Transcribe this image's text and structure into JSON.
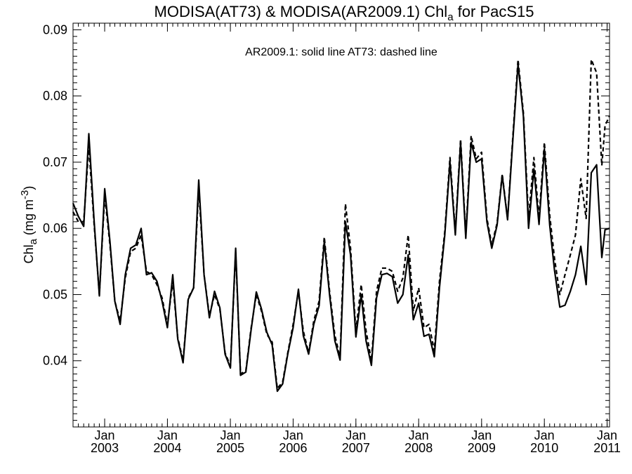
{
  "chart_data": {
    "type": "line",
    "title": {
      "prefix": "MODISA(AT73) & MODISA(AR2009.1)  Chl",
      "sub": "a",
      "suffix": " for PacS15"
    },
    "ylabel": {
      "main": "Chl",
      "sub": "a",
      "unit_open": " (mg m",
      "unit_sup": "-3",
      "unit_close": ")"
    },
    "annotation": "AR2009.1: solid line   AT73: dashed line",
    "ylim": [
      0.03,
      0.091
    ],
    "xlim": [
      "2002-07-01",
      "2011-01-15"
    ],
    "y_ticks": [
      "0.04",
      "0.05",
      "0.06",
      "0.07",
      "0.08",
      "0.09"
    ],
    "x_ticks": [
      {
        "date": "2003-01-01",
        "month": "Jan",
        "year": "2003"
      },
      {
        "date": "2004-01-01",
        "month": "Jan",
        "year": "2004"
      },
      {
        "date": "2005-01-01",
        "month": "Jan",
        "year": "2005"
      },
      {
        "date": "2006-01-01",
        "month": "Jan",
        "year": "2006"
      },
      {
        "date": "2007-01-01",
        "month": "Jan",
        "year": "2007"
      },
      {
        "date": "2008-01-01",
        "month": "Jan",
        "year": "2008"
      },
      {
        "date": "2009-01-01",
        "month": "Jan",
        "year": "2009"
      },
      {
        "date": "2010-01-01",
        "month": "Jan",
        "year": "2010"
      },
      {
        "date": "2011-01-01",
        "month": "Jan",
        "year": "2011"
      }
    ],
    "grid": false,
    "series": [
      {
        "name": "AR2009.1",
        "style": "solid",
        "color": "#000000",
        "points": [
          [
            "2002-07-01",
            0.0638
          ],
          [
            "2002-08-01",
            0.0618
          ],
          [
            "2002-09-01",
            0.0603
          ],
          [
            "2002-10-01",
            0.0743
          ],
          [
            "2002-11-01",
            0.061
          ],
          [
            "2002-12-01",
            0.0498
          ],
          [
            "2003-01-01",
            0.066
          ],
          [
            "2003-02-01",
            0.058
          ],
          [
            "2003-03-01",
            0.049
          ],
          [
            "2003-04-01",
            0.0455
          ],
          [
            "2003-05-01",
            0.053
          ],
          [
            "2003-06-01",
            0.057
          ],
          [
            "2003-07-01",
            0.0575
          ],
          [
            "2003-08-01",
            0.06
          ],
          [
            "2003-09-01",
            0.053
          ],
          [
            "2003-10-01",
            0.0533
          ],
          [
            "2003-11-01",
            0.052
          ],
          [
            "2003-12-01",
            0.049
          ],
          [
            "2004-01-01",
            0.045
          ],
          [
            "2004-02-01",
            0.053
          ],
          [
            "2004-03-01",
            0.0433
          ],
          [
            "2004-04-01",
            0.0397
          ],
          [
            "2004-05-01",
            0.0493
          ],
          [
            "2004-06-01",
            0.051
          ],
          [
            "2004-07-01",
            0.0673
          ],
          [
            "2004-08-01",
            0.053
          ],
          [
            "2004-09-01",
            0.0465
          ],
          [
            "2004-10-01",
            0.0505
          ],
          [
            "2004-11-01",
            0.048
          ],
          [
            "2004-12-01",
            0.041
          ],
          [
            "2005-01-01",
            0.0389
          ],
          [
            "2005-02-01",
            0.057
          ],
          [
            "2005-03-01",
            0.0378
          ],
          [
            "2005-04-01",
            0.0383
          ],
          [
            "2005-05-01",
            0.0445
          ],
          [
            "2005-06-01",
            0.0504
          ],
          [
            "2005-07-01",
            0.0478
          ],
          [
            "2005-08-01",
            0.0443
          ],
          [
            "2005-09-01",
            0.0424
          ],
          [
            "2005-10-01",
            0.0354
          ],
          [
            "2005-11-01",
            0.0365
          ],
          [
            "2005-12-01",
            0.041
          ],
          [
            "2006-01-01",
            0.045
          ],
          [
            "2006-02-01",
            0.0508
          ],
          [
            "2006-03-01",
            0.0438
          ],
          [
            "2006-04-01",
            0.041
          ],
          [
            "2006-05-01",
            0.0455
          ],
          [
            "2006-06-01",
            0.0483
          ],
          [
            "2006-07-01",
            0.058
          ],
          [
            "2006-08-01",
            0.05
          ],
          [
            "2006-09-01",
            0.043
          ],
          [
            "2006-10-01",
            0.0401
          ],
          [
            "2006-11-01",
            0.061
          ],
          [
            "2006-12-01",
            0.056
          ],
          [
            "2007-01-01",
            0.0436
          ],
          [
            "2007-02-01",
            0.05
          ],
          [
            "2007-03-01",
            0.043
          ],
          [
            "2007-04-01",
            0.0393
          ],
          [
            "2007-05-01",
            0.0495
          ],
          [
            "2007-06-01",
            0.053
          ],
          [
            "2007-07-01",
            0.0532
          ],
          [
            "2007-08-01",
            0.0527
          ],
          [
            "2007-09-01",
            0.0487
          ],
          [
            "2007-10-01",
            0.05
          ],
          [
            "2007-11-01",
            0.056
          ],
          [
            "2007-12-01",
            0.0462
          ],
          [
            "2008-01-01",
            0.0487
          ],
          [
            "2008-02-01",
            0.0437
          ],
          [
            "2008-03-01",
            0.044
          ],
          [
            "2008-04-01",
            0.0406
          ],
          [
            "2008-05-01",
            0.051
          ],
          [
            "2008-06-01",
            0.059
          ],
          [
            "2008-07-01",
            0.07
          ],
          [
            "2008-08-01",
            0.059
          ],
          [
            "2008-09-01",
            0.073
          ],
          [
            "2008-10-01",
            0.0585
          ],
          [
            "2008-11-01",
            0.073
          ],
          [
            "2008-12-01",
            0.07
          ],
          [
            "2009-01-01",
            0.0705
          ],
          [
            "2009-02-01",
            0.061
          ],
          [
            "2009-03-01",
            0.057
          ],
          [
            "2009-04-01",
            0.0605
          ],
          [
            "2009-05-01",
            0.068
          ],
          [
            "2009-06-01",
            0.0613
          ],
          [
            "2009-07-01",
            0.073
          ],
          [
            "2009-08-01",
            0.0848
          ],
          [
            "2009-09-01",
            0.077
          ],
          [
            "2009-10-01",
            0.06
          ],
          [
            "2009-11-01",
            0.069
          ],
          [
            "2009-12-01",
            0.0606
          ],
          [
            "2010-01-01",
            0.072
          ],
          [
            "2010-02-01",
            0.0605
          ],
          [
            "2010-03-01",
            0.0537
          ],
          [
            "2010-04-01",
            0.0481
          ],
          [
            "2010-05-01",
            0.0484
          ],
          [
            "2010-06-01",
            0.0505
          ],
          [
            "2010-07-01",
            0.053
          ],
          [
            "2010-08-01",
            0.0573
          ],
          [
            "2010-09-01",
            0.0515
          ],
          [
            "2010-10-01",
            0.0684
          ],
          [
            "2010-11-01",
            0.0696
          ],
          [
            "2010-12-01",
            0.0556
          ],
          [
            "2010-12-20",
            0.0598
          ],
          [
            "2011-01-15",
            0.06
          ]
        ]
      },
      {
        "name": "AT73",
        "style": "dashed",
        "color": "#000000",
        "points": [
          [
            "2002-07-01",
            0.0625
          ],
          [
            "2002-08-01",
            0.061
          ],
          [
            "2002-09-01",
            0.061
          ],
          [
            "2002-10-01",
            0.0725
          ],
          [
            "2002-11-01",
            0.0605
          ],
          [
            "2002-12-01",
            0.05
          ],
          [
            "2003-01-01",
            0.065
          ],
          [
            "2003-02-01",
            0.0575
          ],
          [
            "2003-03-01",
            0.049
          ],
          [
            "2003-04-01",
            0.046
          ],
          [
            "2003-05-01",
            0.0525
          ],
          [
            "2003-06-01",
            0.0565
          ],
          [
            "2003-07-01",
            0.057
          ],
          [
            "2003-08-01",
            0.059
          ],
          [
            "2003-09-01",
            0.0535
          ],
          [
            "2003-10-01",
            0.053
          ],
          [
            "2003-11-01",
            0.0515
          ],
          [
            "2003-12-01",
            0.0495
          ],
          [
            "2004-01-01",
            0.0455
          ],
          [
            "2004-02-01",
            0.052
          ],
          [
            "2004-03-01",
            0.0435
          ],
          [
            "2004-04-01",
            0.04
          ],
          [
            "2004-05-01",
            0.0495
          ],
          [
            "2004-06-01",
            0.051
          ],
          [
            "2004-07-01",
            0.066
          ],
          [
            "2004-08-01",
            0.053
          ],
          [
            "2004-09-01",
            0.0468
          ],
          [
            "2004-10-01",
            0.05
          ],
          [
            "2004-11-01",
            0.0478
          ],
          [
            "2004-12-01",
            0.0412
          ],
          [
            "2005-01-01",
            0.0392
          ],
          [
            "2005-02-01",
            0.0565
          ],
          [
            "2005-03-01",
            0.038
          ],
          [
            "2005-04-01",
            0.0385
          ],
          [
            "2005-05-01",
            0.0448
          ],
          [
            "2005-06-01",
            0.05
          ],
          [
            "2005-07-01",
            0.0475
          ],
          [
            "2005-08-01",
            0.044
          ],
          [
            "2005-09-01",
            0.0428
          ],
          [
            "2005-10-01",
            0.0358
          ],
          [
            "2005-11-01",
            0.0368
          ],
          [
            "2005-12-01",
            0.0412
          ],
          [
            "2006-01-01",
            0.0455
          ],
          [
            "2006-02-01",
            0.0505
          ],
          [
            "2006-03-01",
            0.0445
          ],
          [
            "2006-04-01",
            0.0412
          ],
          [
            "2006-05-01",
            0.046
          ],
          [
            "2006-06-01",
            0.049
          ],
          [
            "2006-07-01",
            0.0587
          ],
          [
            "2006-08-01",
            0.0505
          ],
          [
            "2006-09-01",
            0.0438
          ],
          [
            "2006-10-01",
            0.0405
          ],
          [
            "2006-11-01",
            0.0637
          ],
          [
            "2006-12-01",
            0.057
          ],
          [
            "2007-01-01",
            0.0445
          ],
          [
            "2007-02-01",
            0.0515
          ],
          [
            "2007-03-01",
            0.0445
          ],
          [
            "2007-04-01",
            0.04
          ],
          [
            "2007-05-01",
            0.0505
          ],
          [
            "2007-06-01",
            0.054
          ],
          [
            "2007-07-01",
            0.054
          ],
          [
            "2007-08-01",
            0.0535
          ],
          [
            "2007-09-01",
            0.0505
          ],
          [
            "2007-10-01",
            0.0525
          ],
          [
            "2007-11-01",
            0.059
          ],
          [
            "2007-12-01",
            0.0475
          ],
          [
            "2008-01-01",
            0.051
          ],
          [
            "2008-02-01",
            0.045
          ],
          [
            "2008-03-01",
            0.0455
          ],
          [
            "2008-04-01",
            0.0415
          ],
          [
            "2008-05-01",
            0.052
          ],
          [
            "2008-06-01",
            0.0595
          ],
          [
            "2008-07-01",
            0.0707
          ],
          [
            "2008-08-01",
            0.0595
          ],
          [
            "2008-09-01",
            0.0735
          ],
          [
            "2008-10-01",
            0.059
          ],
          [
            "2008-11-01",
            0.074
          ],
          [
            "2008-12-01",
            0.0705
          ],
          [
            "2009-01-01",
            0.0715
          ],
          [
            "2009-02-01",
            0.0615
          ],
          [
            "2009-03-01",
            0.0575
          ],
          [
            "2009-04-01",
            0.0608
          ],
          [
            "2009-05-01",
            0.0682
          ],
          [
            "2009-06-01",
            0.0615
          ],
          [
            "2009-07-01",
            0.0735
          ],
          [
            "2009-08-01",
            0.0855
          ],
          [
            "2009-09-01",
            0.0775
          ],
          [
            "2009-10-01",
            0.0615
          ],
          [
            "2009-11-01",
            0.0707
          ],
          [
            "2009-12-01",
            0.0615
          ],
          [
            "2010-01-01",
            0.073
          ],
          [
            "2010-02-01",
            0.062
          ],
          [
            "2010-03-01",
            0.0555
          ],
          [
            "2010-04-01",
            0.05
          ],
          [
            "2010-05-01",
            0.053
          ],
          [
            "2010-06-01",
            0.056
          ],
          [
            "2010-07-01",
            0.059
          ],
          [
            "2010-08-01",
            0.0675
          ],
          [
            "2010-09-01",
            0.0615
          ],
          [
            "2010-10-01",
            0.0855
          ],
          [
            "2010-11-01",
            0.0835
          ],
          [
            "2010-12-01",
            0.0695
          ],
          [
            "2010-12-20",
            0.0755
          ],
          [
            "2011-01-15",
            0.077
          ]
        ]
      }
    ]
  }
}
